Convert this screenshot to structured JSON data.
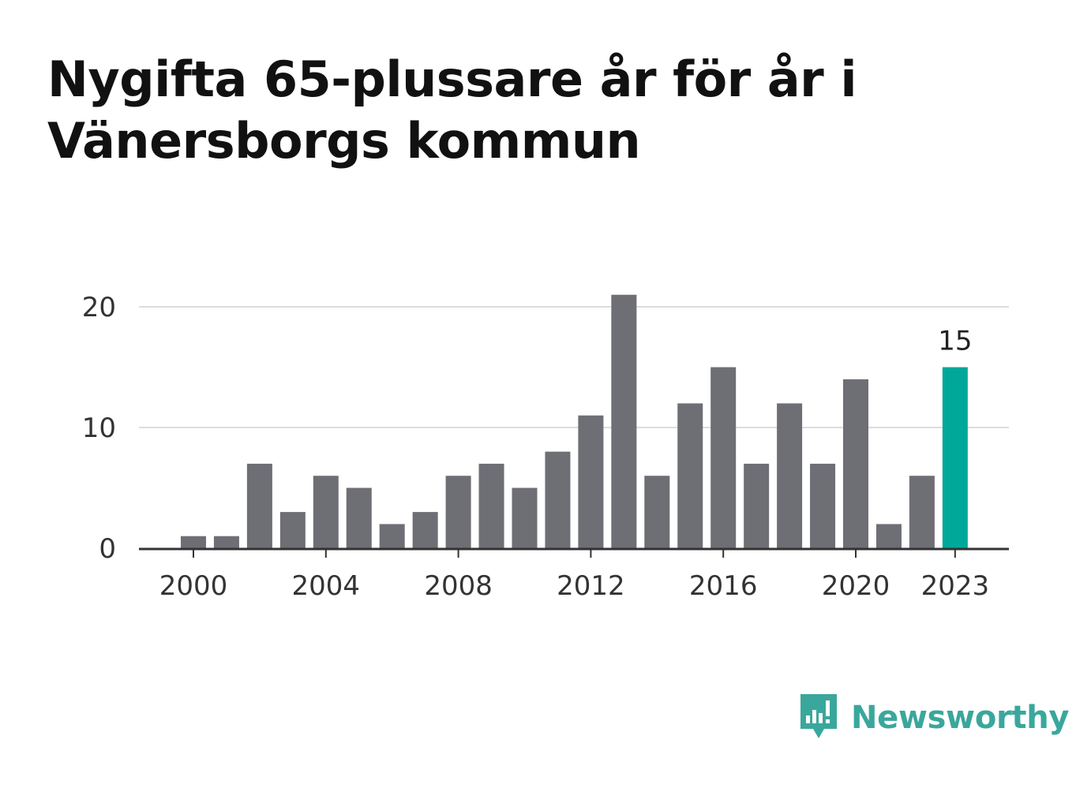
{
  "title": "Nygifta 65-plussare år för år i Vänersborgs kommun",
  "brand": {
    "name": "Newsworthy",
    "icon": "newsworthy-logo-icon",
    "color": "#3aa79c"
  },
  "chart_data": {
    "type": "bar",
    "title": "Nygifta 65-plussare år för år i Vänersborgs kommun",
    "xlabel": "",
    "ylabel": "",
    "categories": [
      "2000",
      "2001",
      "2002",
      "2003",
      "2004",
      "2005",
      "2006",
      "2007",
      "2008",
      "2009",
      "2010",
      "2011",
      "2012",
      "2013",
      "2014",
      "2015",
      "2016",
      "2017",
      "2018",
      "2019",
      "2020",
      "2021",
      "2022",
      "2023"
    ],
    "values": [
      1,
      1,
      7,
      3,
      6,
      5,
      2,
      3,
      6,
      7,
      5,
      8,
      11,
      21,
      6,
      12,
      15,
      7,
      12,
      7,
      14,
      2,
      6,
      15
    ],
    "x_ticks": [
      "2000",
      "2004",
      "2008",
      "2012",
      "2016",
      "2020",
      "2023"
    ],
    "y_ticks": [
      0,
      10,
      20
    ],
    "ylim": [
      0,
      21
    ],
    "grid": true,
    "highlight": {
      "category": "2023",
      "value_label": "15"
    },
    "colors": {
      "bar": "#6e6e75",
      "highlight": "#00a89a",
      "grid": "#dddddd",
      "axis": "#333333"
    }
  }
}
